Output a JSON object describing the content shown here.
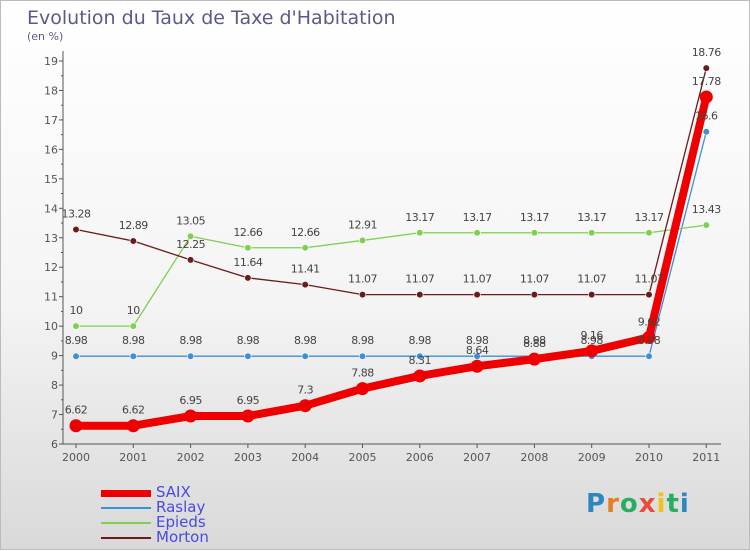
{
  "title": "Evolution du Taux de Taxe d'Habitation",
  "subtitle": "(en %)",
  "logo": {
    "text": "Proxiti",
    "letter_colors": [
      "#2e86c1",
      "#e67e22",
      "#27ae60",
      "#e74c3c",
      "#f1c40f",
      "#27ae60",
      "#2e86c1"
    ]
  },
  "chart_data": {
    "type": "line",
    "title": "Evolution du Taux de Taxe d'Habitation",
    "ylabel": "(en %)",
    "x": [
      "2000",
      "2001",
      "2002",
      "2003",
      "2004",
      "2005",
      "2006",
      "2007",
      "2008",
      "2009",
      "2010",
      "2011"
    ],
    "ylim": [
      6,
      19
    ],
    "yticks": [
      6,
      7,
      8,
      9,
      10,
      11,
      12,
      13,
      14,
      15,
      16,
      17,
      18,
      19
    ],
    "grid": false,
    "legend_position": "bottom-left",
    "series": [
      {
        "name": "Raslay",
        "color": "#3d8fd8",
        "values": [
          8.98,
          8.98,
          8.98,
          8.98,
          8.98,
          8.98,
          8.98,
          8.98,
          8.98,
          8.98,
          8.98,
          16.6
        ],
        "labels": [
          "8.98",
          "8.98",
          "8.98",
          "8.98",
          "8.98",
          "8.98",
          "8.98",
          "8.98",
          "8.98",
          "8.98",
          "8.98",
          "16.6"
        ]
      },
      {
        "name": "Epieds",
        "color": "#7ed050",
        "values": [
          10,
          10,
          13.05,
          12.66,
          12.66,
          12.91,
          13.17,
          13.17,
          13.17,
          13.17,
          13.17,
          13.43
        ],
        "labels": [
          "10",
          "10",
          "13.05",
          "12.66",
          "12.66",
          "12.91",
          "13.17",
          "13.17",
          "13.17",
          "13.17",
          "13.17",
          "13.43"
        ]
      },
      {
        "name": "Morton",
        "color": "#6b1a1a",
        "values": [
          13.28,
          12.89,
          12.25,
          11.64,
          11.41,
          11.07,
          11.07,
          11.07,
          11.07,
          11.07,
          11.07,
          18.76
        ],
        "labels": [
          "13.28",
          "12.89",
          "12.25",
          "11.64",
          "11.41",
          "11.07",
          "11.07",
          "11.07",
          "11.07",
          "11.07",
          "11.07",
          "18.76"
        ]
      },
      {
        "name": "SAIX",
        "color": "#ee0000",
        "values": [
          6.62,
          6.62,
          6.95,
          6.95,
          7.3,
          7.88,
          8.31,
          8.64,
          8.88,
          9.16,
          9.62,
          17.78
        ],
        "labels": [
          "6.62",
          "6.62",
          "6.95",
          "6.95",
          "7.3",
          "7.88",
          "8.31",
          "8.64",
          "8.88",
          "9.16",
          "9.62",
          "17.78"
        ]
      }
    ],
    "legend": [
      {
        "name": "SAIX",
        "color": "#ee0000"
      },
      {
        "name": "Raslay",
        "color": "#3d8fd8"
      },
      {
        "name": "Epieds",
        "color": "#7ed050"
      },
      {
        "name": "Morton",
        "color": "#6b1a1a"
      }
    ]
  }
}
